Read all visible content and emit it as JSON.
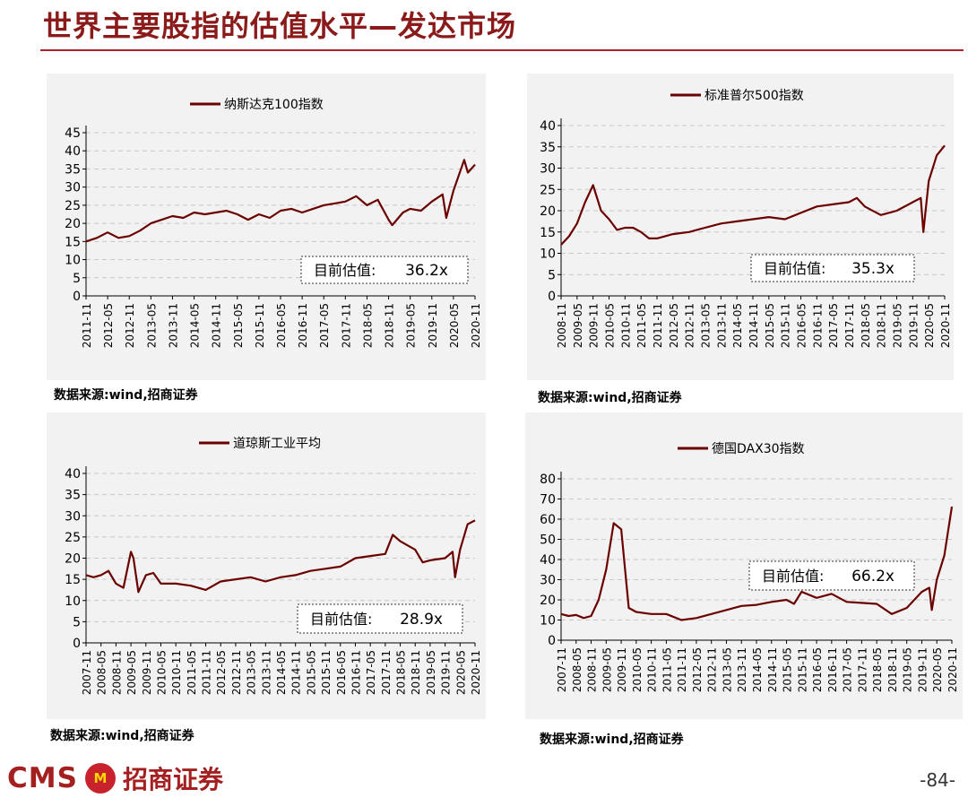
{
  "page": {
    "title": "世界主要股指的估值水平—发达市场",
    "page_number": "-84-",
    "logo_latin": "CMS",
    "logo_cn": "招商证券",
    "logo_badge": "M"
  },
  "colors": {
    "accent": "#8b1a1a",
    "line": "#6b0000",
    "rule": "#b22222",
    "panel_bg": "#f2f2f2"
  },
  "chart_data": [
    {
      "id": "ndx",
      "type": "line",
      "title": "",
      "series": [
        {
          "name": "纳斯达克100指数",
          "x": [
            "2011-11",
            "2012-02",
            "2012-05",
            "2012-08",
            "2012-11",
            "2013-02",
            "2013-05",
            "2013-08",
            "2013-11",
            "2014-02",
            "2014-05",
            "2014-08",
            "2014-11",
            "2015-02",
            "2015-05",
            "2015-08",
            "2015-11",
            "2016-02",
            "2016-05",
            "2016-08",
            "2016-11",
            "2017-02",
            "2017-05",
            "2017-08",
            "2017-11",
            "2018-02",
            "2018-05",
            "2018-08",
            "2018-11",
            "2018-12",
            "2019-03",
            "2019-05",
            "2019-08",
            "2019-11",
            "2020-02",
            "2020-03",
            "2020-05",
            "2020-08",
            "2020-09",
            "2020-11"
          ],
          "values": [
            15,
            16,
            17.5,
            16,
            16.5,
            18,
            20,
            21,
            22,
            21.5,
            23,
            22.5,
            23,
            23.5,
            22.5,
            21,
            22.5,
            21.5,
            23.5,
            24,
            23,
            24,
            25,
            25.5,
            26,
            27.5,
            25,
            26.5,
            21,
            19.5,
            23,
            24,
            23.5,
            26,
            28,
            21.5,
            29,
            37.5,
            34,
            36.2
          ]
        }
      ],
      "categories": [
        "2011-11",
        "2012-05",
        "2012-11",
        "2013-05",
        "2013-11",
        "2014-05",
        "2014-11",
        "2015-05",
        "2015-11",
        "2016-05",
        "2016-11",
        "2017-05",
        "2017-11",
        "2018-05",
        "2018-11",
        "2019-05",
        "2019-11",
        "2020-05",
        "2020-11"
      ],
      "yticks": [
        "0",
        "5",
        "10",
        "15",
        "20",
        "25",
        "30",
        "35",
        "40",
        "45"
      ],
      "ylim": [
        0,
        45
      ],
      "legend": "top-center",
      "annotation": {
        "label": "目前估值:",
        "value": "36.2x"
      }
    },
    {
      "id": "spx",
      "type": "line",
      "title": "",
      "series": [
        {
          "name": "标准普尔500指数",
          "x": [
            "2008-11",
            "2009-02",
            "2009-05",
            "2009-08",
            "2009-11",
            "2010-02",
            "2010-05",
            "2010-08",
            "2010-11",
            "2011-02",
            "2011-05",
            "2011-08",
            "2011-11",
            "2012-05",
            "2012-11",
            "2013-05",
            "2013-11",
            "2014-05",
            "2014-11",
            "2015-05",
            "2015-11",
            "2016-05",
            "2016-11",
            "2017-05",
            "2017-11",
            "2018-02",
            "2018-05",
            "2018-11",
            "2019-02",
            "2019-05",
            "2019-11",
            "2020-02",
            "2020-03",
            "2020-05",
            "2020-08",
            "2020-11"
          ],
          "values": [
            12,
            14,
            17,
            22,
            26,
            20,
            18,
            15.5,
            16,
            16,
            15,
            13.5,
            13.5,
            14.5,
            15,
            16,
            17,
            17.5,
            18,
            18.5,
            18,
            19.5,
            21,
            21.5,
            22,
            23,
            21,
            19,
            19.5,
            20,
            22,
            23,
            15,
            27,
            33,
            35.3
          ]
        }
      ],
      "categories": [
        "2008-11",
        "2009-05",
        "2009-11",
        "2010-05",
        "2010-11",
        "2011-05",
        "2011-11",
        "2012-05",
        "2012-11",
        "2013-05",
        "2013-11",
        "2014-05",
        "2014-11",
        "2015-05",
        "2015-11",
        "2016-05",
        "2016-11",
        "2017-05",
        "2017-11",
        "2018-05",
        "2018-11",
        "2019-05",
        "2019-11",
        "2020-05",
        "2020-11"
      ],
      "yticks": [
        "0",
        "5",
        "10",
        "15",
        "20",
        "25",
        "30",
        "35",
        "40"
      ],
      "ylim": [
        0,
        40
      ],
      "legend": "top-right",
      "annotation": {
        "label": "目前估值:",
        "value": "35.3x"
      }
    },
    {
      "id": "dji",
      "type": "line",
      "title": "",
      "series": [
        {
          "name": "道琼斯工业平均",
          "x": [
            "2007-11",
            "2008-02",
            "2008-05",
            "2008-08",
            "2008-11",
            "2009-02",
            "2009-05",
            "2009-06",
            "2009-08",
            "2009-11",
            "2010-02",
            "2010-05",
            "2010-11",
            "2011-05",
            "2011-11",
            "2012-05",
            "2012-11",
            "2013-05",
            "2013-11",
            "2014-05",
            "2014-11",
            "2015-05",
            "2015-11",
            "2016-05",
            "2016-11",
            "2017-05",
            "2017-11",
            "2018-02",
            "2018-05",
            "2018-11",
            "2019-02",
            "2019-05",
            "2019-11",
            "2020-02",
            "2020-03",
            "2020-05",
            "2020-08",
            "2020-11"
          ],
          "values": [
            16,
            15.5,
            16,
            17,
            14,
            13,
            21.5,
            20,
            12,
            16,
            16.5,
            14,
            14,
            13.5,
            12.5,
            14.5,
            15,
            15.5,
            14.5,
            15.5,
            16,
            17,
            17.5,
            18,
            20,
            20.5,
            21,
            25.5,
            24,
            22,
            19,
            19.5,
            20,
            21.5,
            15.5,
            22,
            28,
            28.9
          ]
        }
      ],
      "categories": [
        "2007-11",
        "2008-05",
        "2008-11",
        "2009-05",
        "2009-11",
        "2010-05",
        "2010-11",
        "2011-05",
        "2011-11",
        "2012-05",
        "2012-11",
        "2013-05",
        "2013-11",
        "2014-05",
        "2014-11",
        "2015-05",
        "2015-11",
        "2016-05",
        "2016-11",
        "2017-05",
        "2017-11",
        "2018-05",
        "2018-11",
        "2019-05",
        "2019-11",
        "2020-05",
        "2020-11"
      ],
      "yticks": [
        "0",
        "5",
        "10",
        "15",
        "20",
        "25",
        "30",
        "35",
        "40"
      ],
      "ylim": [
        0,
        40
      ],
      "legend": "top-center",
      "annotation": {
        "label": "目前估值:",
        "value": "28.9x"
      }
    },
    {
      "id": "dax",
      "type": "line",
      "title": "",
      "series": [
        {
          "name": "德国DAX30指数",
          "x": [
            "2007-11",
            "2008-02",
            "2008-05",
            "2008-08",
            "2008-11",
            "2009-02",
            "2009-05",
            "2009-08",
            "2009-11",
            "2010-02",
            "2010-05",
            "2010-11",
            "2011-05",
            "2011-11",
            "2012-05",
            "2012-11",
            "2013-05",
            "2013-11",
            "2014-05",
            "2014-11",
            "2015-05",
            "2015-08",
            "2015-11",
            "2016-05",
            "2016-11",
            "2017-05",
            "2017-11",
            "2018-05",
            "2018-11",
            "2019-05",
            "2019-11",
            "2020-02",
            "2020-03",
            "2020-05",
            "2020-08",
            "2020-11"
          ],
          "values": [
            13,
            12,
            12.5,
            11,
            12,
            20,
            35,
            58,
            55,
            16,
            14,
            13,
            13,
            10,
            11,
            13,
            15,
            17,
            17.5,
            19,
            20,
            18,
            24,
            21,
            23,
            19,
            18.5,
            18,
            13,
            16,
            24,
            26,
            15,
            30,
            42,
            66.2
          ]
        }
      ],
      "categories": [
        "2007-11",
        "2008-05",
        "2008-11",
        "2009-05",
        "2009-11",
        "2010-05",
        "2010-11",
        "2011-05",
        "2011-11",
        "2012-05",
        "2012-11",
        "2013-05",
        "2013-11",
        "2014-05",
        "2014-11",
        "2015-05",
        "2015-11",
        "2016-05",
        "2016-11",
        "2017-05",
        "2017-11",
        "2018-05",
        "2018-11",
        "2019-05",
        "2019-11",
        "2020-05",
        "2020-11"
      ],
      "yticks": [
        "0",
        "10",
        "20",
        "30",
        "40",
        "50",
        "60",
        "70",
        "80"
      ],
      "ylim": [
        0,
        80
      ],
      "legend": "top-center",
      "annotation": {
        "label": "目前估值:",
        "value": "66.2x"
      }
    }
  ],
  "sources": [
    "数据来源:wind,招商证券",
    "数据来源:wind,招商证券",
    "数据来源:wind,招商证券",
    "数据来源:wind,招商证券"
  ]
}
